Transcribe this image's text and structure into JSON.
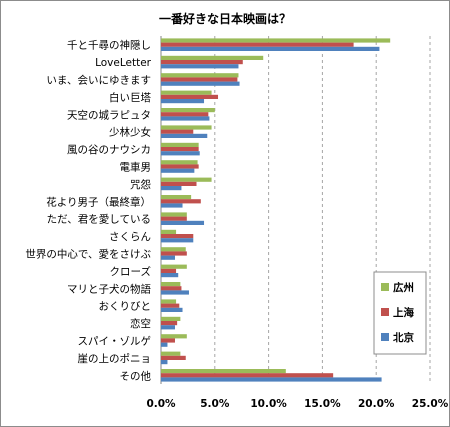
{
  "chart_data": {
    "type": "bar",
    "orientation": "horizontal",
    "title": "一番好きな日本映画は？",
    "xlabel": "",
    "ylabel": "",
    "xlim": [
      0,
      25
    ],
    "tick_labels": [
      "0.0%",
      "5.0%",
      "10.0%",
      "15.0%",
      "20.0%",
      "25.0%"
    ],
    "grid": "vertical dashed",
    "legend_position": "right",
    "categories": [
      "千と千尋の神隠し",
      "LoveLetter",
      "いま、会いにゆきます",
      "白い巨塔",
      "天空の城ラピュタ",
      "少林少女",
      "風の谷のナウシカ",
      "電車男",
      "咒怨",
      "花より男子（最終章）",
      "ただ、君を愛している",
      "さくらん",
      "世界の中心で、愛をさけぶ",
      "クローズ",
      "マリと子犬の物語",
      "おくりびと",
      "恋空",
      "スパイ・ゾルゲ",
      "崖の上のポニョ",
      "その他"
    ],
    "series": [
      {
        "name": "広州",
        "color": "#9bbb59",
        "values": [
          21.3,
          9.5,
          7.2,
          4.7,
          5.0,
          4.7,
          3.5,
          3.4,
          4.7,
          2.8,
          2.4,
          1.4,
          2.3,
          2.4,
          1.8,
          1.4,
          1.8,
          2.4,
          1.8,
          11.6
        ]
      },
      {
        "name": "上海",
        "color": "#c0504d",
        "values": [
          17.9,
          7.6,
          7.1,
          5.3,
          4.4,
          3.0,
          3.5,
          3.5,
          3.3,
          3.7,
          2.4,
          3.0,
          2.4,
          1.4,
          1.9,
          1.7,
          1.5,
          1.3,
          2.3,
          16.0
        ]
      },
      {
        "name": "北京",
        "color": "#4f81bd",
        "values": [
          20.3,
          7.2,
          7.3,
          4.0,
          4.5,
          4.3,
          3.6,
          3.1,
          1.9,
          2.0,
          4.0,
          3.0,
          1.3,
          1.6,
          2.6,
          2.0,
          1.3,
          0.6,
          0.6,
          20.5
        ]
      }
    ]
  }
}
